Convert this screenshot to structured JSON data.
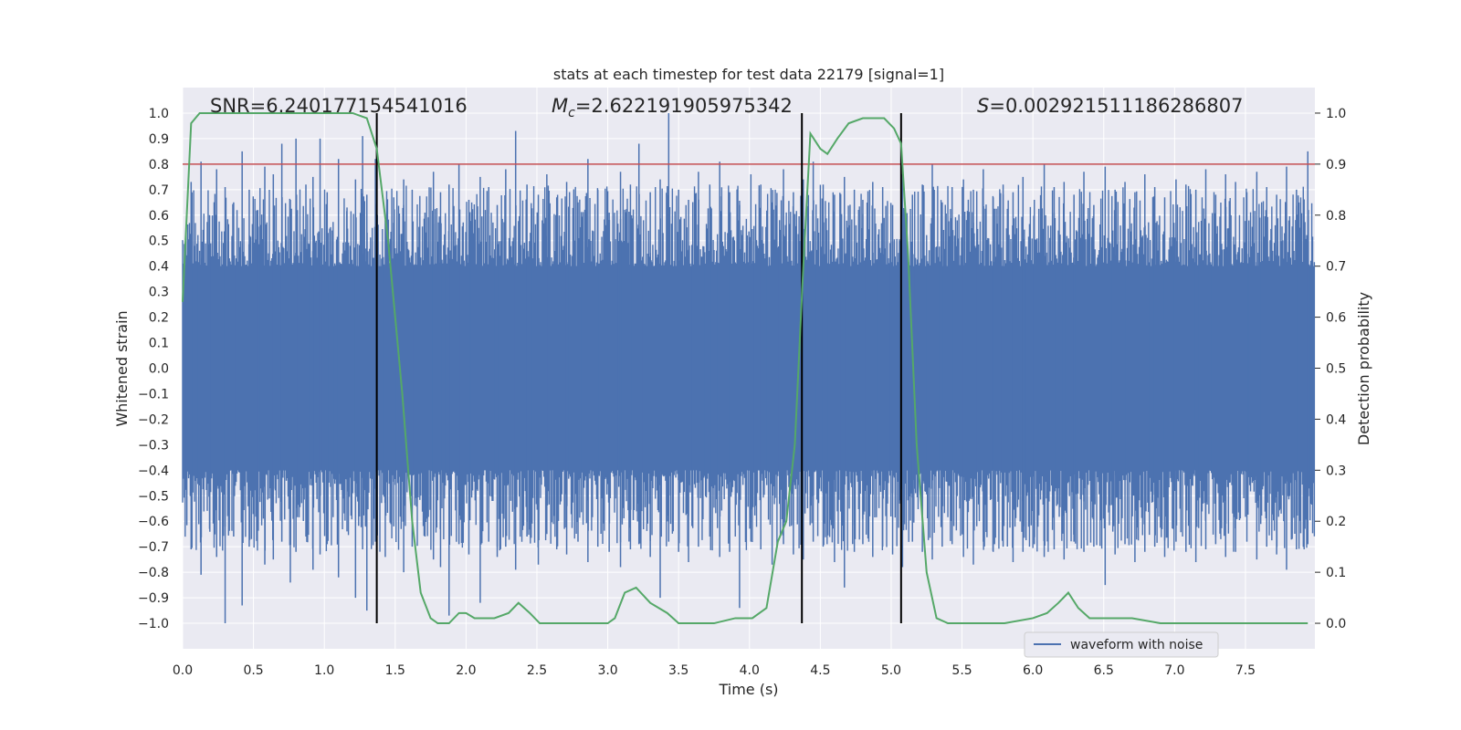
{
  "chart_data": {
    "type": "line",
    "title": "stats at each timestep for test data 22179 [signal=1]",
    "xlabel": "Time (s)",
    "ylabel": "Whitened strain",
    "ylabel_right": "Detection probability",
    "xlim": [
      0.0,
      7.99
    ],
    "ylim": [
      -1.1,
      1.1
    ],
    "ylim_right": [
      -0.05,
      1.05
    ],
    "x_ticks": [
      0.0,
      0.5,
      1.0,
      1.5,
      2.0,
      2.5,
      3.0,
      3.5,
      4.0,
      4.5,
      5.0,
      5.5,
      6.0,
      6.5,
      7.0,
      7.5
    ],
    "x_tick_labels": [
      "0.0",
      "0.5",
      "1.0",
      "1.5",
      "2.0",
      "2.5",
      "3.0",
      "3.5",
      "4.0",
      "4.5",
      "5.0",
      "5.5",
      "6.0",
      "6.5",
      "7.0",
      "7.5"
    ],
    "y_ticks": [
      1.0,
      0.9,
      0.8,
      0.7,
      0.6,
      0.5,
      0.4,
      0.3,
      0.2,
      0.1,
      0.0,
      -0.1,
      -0.2,
      -0.3,
      -0.4,
      -0.5,
      -0.6,
      -0.7,
      -0.8,
      -0.9,
      -1.0
    ],
    "y_tick_labels": [
      "1.0",
      "0.9",
      "0.8",
      "0.7",
      "0.6",
      "0.5",
      "0.4",
      "0.3",
      "0.2",
      "0.1",
      "0.0",
      "−0.1",
      "−0.2",
      "−0.3",
      "−0.4",
      "−0.5",
      "−0.6",
      "−0.7",
      "−0.8",
      "−0.9",
      "−1.0"
    ],
    "y_right_ticks": [
      1.0,
      0.9,
      0.8,
      0.7,
      0.6,
      0.5,
      0.4,
      0.3,
      0.2,
      0.1,
      0.0
    ],
    "y_right_tick_labels": [
      "1.0",
      "0.9",
      "0.8",
      "0.7",
      "0.6",
      "0.5",
      "0.4",
      "0.3",
      "0.2",
      "0.1",
      "0.0"
    ],
    "grid": true,
    "legend": {
      "placement": "lower-right",
      "entries": [
        "waveform with noise"
      ]
    },
    "annotations": {
      "snr": "SNR=6.240177154541016",
      "mc_symbol": "M",
      "mc_subscript": "c",
      "mc_value": "=2.622191905975342",
      "s_symbol": "S",
      "s_value": "=0.002921511186286807"
    },
    "threshold": {
      "value": 0.8,
      "color": "#c44e52"
    },
    "vertical_markers": [
      1.37,
      4.37,
      5.07
    ],
    "series": [
      {
        "name": "waveform with noise",
        "axis": "left",
        "color": "#4c72b0",
        "style": "noise",
        "spike_x": [
          0.06,
          0.13,
          0.19,
          0.24,
          0.3,
          0.36,
          0.42,
          0.47,
          0.53,
          0.58,
          0.64,
          0.7,
          0.76,
          0.8,
          0.87,
          0.92,
          0.97,
          1.02,
          1.1,
          1.16,
          1.22,
          1.27,
          1.3,
          1.36,
          1.43,
          1.49,
          1.56,
          1.62,
          1.71,
          1.77,
          1.82,
          1.88,
          1.95,
          2.02,
          2.1,
          2.16,
          2.22,
          2.28,
          2.35,
          2.43,
          2.51,
          2.57,
          2.64,
          2.71,
          2.79,
          2.86,
          2.93,
          3.01,
          3.09,
          3.16,
          3.22,
          3.3,
          3.37,
          3.43,
          3.5,
          3.57,
          3.64,
          3.72,
          3.79,
          3.86,
          3.93,
          4.01,
          4.08,
          4.16,
          4.24,
          4.31,
          4.38,
          4.45,
          4.52,
          4.6,
          4.67,
          4.74,
          4.8,
          4.87,
          4.94,
          5.01,
          5.08,
          5.15,
          5.22,
          5.29,
          5.36,
          5.43,
          5.51,
          5.58,
          5.65,
          5.72,
          5.79,
          5.86,
          5.93,
          6.01,
          6.08,
          6.15,
          6.22,
          6.29,
          6.36,
          6.43,
          6.51,
          6.58,
          6.65,
          6.72,
          6.79,
          6.86,
          6.93,
          7.01,
          7.08,
          7.15,
          7.22,
          7.29,
          7.36,
          7.43,
          7.51,
          7.58,
          7.65,
          7.72,
          7.79,
          7.86,
          7.94
        ],
        "spike_max": [
          0.73,
          0.81,
          0.6,
          0.78,
          0.71,
          0.65,
          0.85,
          0.7,
          0.62,
          0.79,
          0.76,
          0.88,
          0.66,
          0.9,
          0.72,
          0.75,
          0.9,
          0.69,
          0.82,
          0.63,
          0.74,
          0.91,
          0.68,
          0.82,
          0.58,
          0.67,
          0.74,
          0.7,
          0.61,
          0.77,
          0.69,
          0.72,
          0.8,
          0.66,
          0.75,
          0.71,
          0.64,
          0.78,
          0.93,
          0.72,
          0.68,
          0.76,
          0.67,
          0.73,
          0.65,
          0.82,
          0.7,
          0.61,
          0.77,
          0.72,
          0.88,
          0.69,
          0.74,
          1.0,
          0.7,
          0.66,
          0.77,
          0.72,
          0.81,
          0.69,
          0.64,
          0.76,
          0.72,
          0.65,
          0.78,
          0.69,
          0.74,
          0.81,
          0.72,
          0.68,
          0.75,
          0.7,
          0.66,
          0.73,
          0.71,
          0.64,
          0.76,
          0.68,
          0.72,
          0.8,
          0.65,
          0.71,
          0.74,
          0.7,
          0.78,
          0.67,
          0.72,
          0.69,
          0.75,
          0.66,
          0.8,
          0.71,
          0.73,
          0.68,
          0.77,
          0.64,
          0.79,
          0.7,
          0.73,
          0.69,
          0.76,
          0.71,
          0.67,
          0.74,
          0.72,
          0.7,
          0.78,
          0.68,
          0.76,
          0.73,
          0.69,
          0.77,
          0.71,
          0.68,
          0.79,
          0.7,
          0.85
        ],
        "spike_min": [
          -0.71,
          -0.81,
          -0.63,
          -0.74,
          -1.0,
          -0.66,
          -0.93,
          -0.7,
          -0.62,
          -0.77,
          -0.75,
          -0.68,
          -0.84,
          -0.72,
          -0.66,
          -0.79,
          -0.73,
          -0.69,
          -0.82,
          -0.64,
          -0.9,
          -0.71,
          -0.95,
          -0.68,
          -0.74,
          -0.62,
          -0.8,
          -0.7,
          -0.66,
          -0.75,
          -0.78,
          -0.97,
          -0.69,
          -0.73,
          -0.92,
          -0.68,
          -0.74,
          -0.7,
          -0.79,
          -0.66,
          -0.77,
          -0.65,
          -0.71,
          -0.73,
          -0.68,
          -0.76,
          -0.7,
          -0.72,
          -0.78,
          -0.71,
          -0.69,
          -0.74,
          -0.9,
          -0.68,
          -0.72,
          -0.76,
          -0.7,
          -0.66,
          -0.74,
          -0.72,
          -0.94,
          -0.68,
          -0.71,
          -0.77,
          -0.69,
          -0.73,
          -0.75,
          -0.68,
          -0.7,
          -0.76,
          -0.86,
          -0.72,
          -0.69,
          -0.74,
          -0.7,
          -0.73,
          -0.78,
          -0.68,
          -0.72,
          -0.75,
          -0.7,
          -0.69,
          -0.74,
          -0.77,
          -0.68,
          -0.72,
          -0.7,
          -0.76,
          -0.72,
          -0.69,
          -0.74,
          -0.71,
          -0.75,
          -0.68,
          -0.72,
          -0.7,
          -0.85,
          -0.73,
          -0.69,
          -0.76,
          -0.72,
          -0.7,
          -0.74,
          -0.68,
          -0.72,
          -0.76,
          -0.71,
          -0.69,
          -0.74,
          -0.72,
          -0.68,
          -0.75,
          -0.7,
          -0.73,
          -0.79,
          -0.71,
          -0.69
        ]
      },
      {
        "name": "Detection probability",
        "axis": "right",
        "color": "#55a868",
        "x": [
          0.0,
          0.06,
          0.12,
          0.3,
          0.6,
          1.0,
          1.2,
          1.3,
          1.37,
          1.45,
          1.55,
          1.62,
          1.68,
          1.75,
          1.8,
          1.88,
          1.95,
          2.0,
          2.06,
          2.12,
          2.2,
          2.3,
          2.37,
          2.45,
          2.52,
          2.6,
          2.8,
          3.0,
          3.05,
          3.12,
          3.2,
          3.3,
          3.42,
          3.5,
          3.6,
          3.75,
          3.9,
          4.02,
          4.12,
          4.2,
          4.26,
          4.32,
          4.38,
          4.43,
          4.5,
          4.55,
          4.62,
          4.7,
          4.8,
          4.95,
          5.02,
          5.07,
          5.12,
          5.18,
          5.25,
          5.32,
          5.4,
          5.6,
          5.8,
          6.0,
          6.1,
          6.18,
          6.25,
          6.32,
          6.4,
          6.5,
          6.7,
          6.9,
          7.1,
          7.4,
          7.7,
          7.94
        ],
        "y": [
          0.63,
          0.98,
          1.0,
          1.0,
          1.0,
          1.0,
          1.0,
          0.99,
          0.93,
          0.75,
          0.45,
          0.2,
          0.06,
          0.01,
          0.0,
          0.0,
          0.02,
          0.02,
          0.01,
          0.01,
          0.01,
          0.02,
          0.04,
          0.02,
          0.0,
          0.0,
          0.0,
          0.0,
          0.01,
          0.06,
          0.07,
          0.04,
          0.02,
          0.0,
          0.0,
          0.0,
          0.01,
          0.01,
          0.03,
          0.16,
          0.2,
          0.35,
          0.7,
          0.96,
          0.93,
          0.92,
          0.95,
          0.98,
          0.99,
          0.99,
          0.97,
          0.94,
          0.72,
          0.35,
          0.1,
          0.01,
          0.0,
          0.0,
          0.0,
          0.01,
          0.02,
          0.04,
          0.06,
          0.03,
          0.01,
          0.01,
          0.01,
          0.0,
          0.0,
          0.0,
          0.0,
          0.0
        ]
      }
    ]
  }
}
